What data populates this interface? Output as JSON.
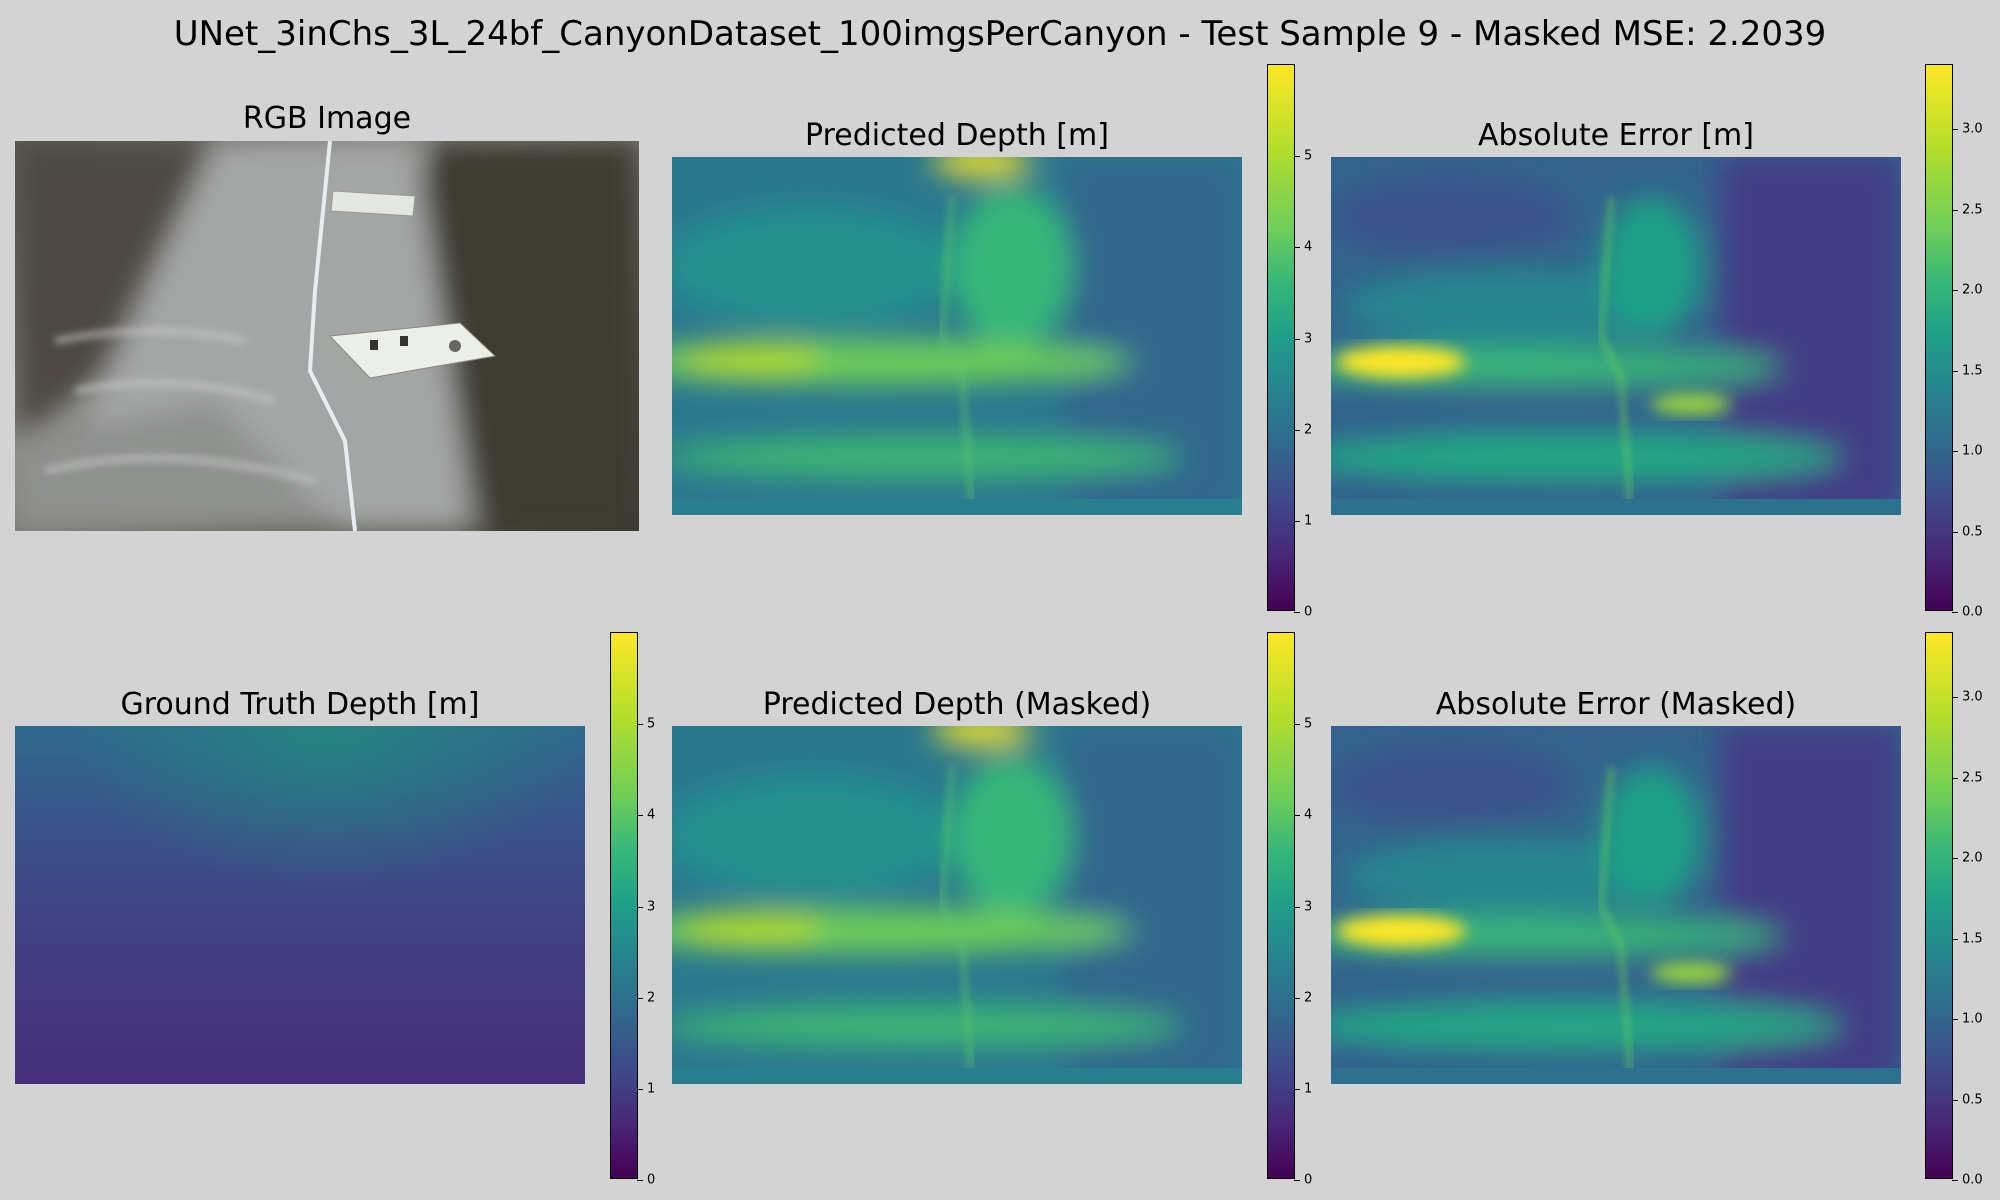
{
  "figure": {
    "suptitle": "UNet_3inChs_3L_24bf_CanyonDataset_100imgsPerCanyon - Test Sample 9 - Masked MSE: 2.2039"
  },
  "panels": {
    "rgb": {
      "title": "RGB Image"
    },
    "pred": {
      "title": "Predicted Depth [m]"
    },
    "err": {
      "title": "Absolute Error [m]"
    },
    "gt": {
      "title": "Ground Truth Depth [m]"
    },
    "pred_masked": {
      "title": "Predicted Depth (Masked)"
    },
    "err_masked": {
      "title": "Absolute Error (Masked)"
    }
  },
  "colorbars": {
    "depth_ticks": [
      "0",
      "1",
      "2",
      "3",
      "4",
      "5"
    ],
    "error_ticks": [
      "0.0",
      "0.5",
      "1.0",
      "1.5",
      "2.0",
      "2.5",
      "3.0"
    ]
  },
  "chart_data": [
    {
      "type": "heatmap",
      "title": "RGB Image",
      "content": "underwater photo of sandy canyon with measuring tape and two white markers"
    },
    {
      "type": "heatmap",
      "title": "Predicted Depth [m]",
      "colormap": "viridis",
      "clim": [
        0,
        6.0
      ],
      "colorbar_ticks": [
        0,
        1,
        2,
        3,
        4,
        5
      ]
    },
    {
      "type": "heatmap",
      "title": "Absolute Error [m]",
      "colormap": "viridis",
      "clim": [
        0,
        3.4
      ],
      "colorbar_ticks": [
        0.0,
        0.5,
        1.0,
        1.5,
        2.0,
        2.5,
        3.0
      ]
    },
    {
      "type": "heatmap",
      "title": "Ground Truth Depth [m]",
      "colormap": "viridis",
      "clim": [
        0,
        6.0
      ],
      "colorbar_ticks": [
        0,
        1,
        2,
        3,
        4,
        5
      ]
    },
    {
      "type": "heatmap",
      "title": "Predicted Depth (Masked)",
      "colormap": "viridis",
      "clim": [
        0,
        6.0
      ],
      "colorbar_ticks": [
        0,
        1,
        2,
        3,
        4,
        5
      ]
    },
    {
      "type": "heatmap",
      "title": "Absolute Error (Masked)",
      "colormap": "viridis",
      "clim": [
        0,
        3.4
      ],
      "colorbar_ticks": [
        0.0,
        0.5,
        1.0,
        1.5,
        2.0,
        2.5,
        3.0
      ]
    }
  ]
}
